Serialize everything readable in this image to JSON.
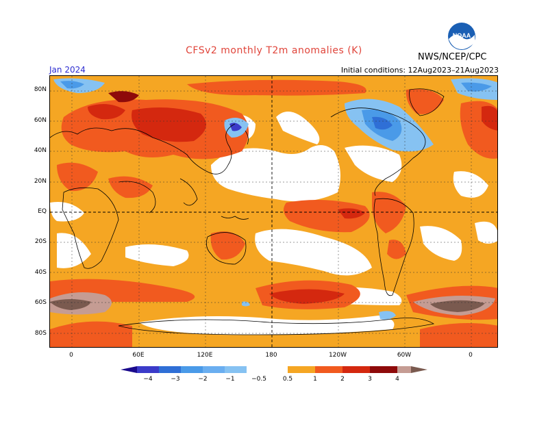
{
  "header": {
    "title": "CFSv2 monthly T2m anomalies (K)",
    "month": "Jan 2024",
    "initial_conditions": "Initial conditions: 12Aug2023–21Aug2023",
    "agency": "NWS/NCEP/CPC",
    "logo_text": "NOAA"
  },
  "map": {
    "lat_labels": [
      "80N",
      "60N",
      "40N",
      "20N",
      "EQ",
      "20S",
      "40S",
      "60S",
      "80S"
    ],
    "lon_labels": [
      "0",
      "60E",
      "120E",
      "180",
      "120W",
      "60W",
      "0"
    ]
  },
  "colorbar": {
    "labels": [
      "−4",
      "−3",
      "−2",
      "−1",
      "−0.5",
      "0.5",
      "1",
      "2",
      "3",
      "4"
    ],
    "colors": {
      "lt_-4": "#1a0a8c",
      "-4_-3": "#3b3bc9",
      "-3_-2": "#2f6fd6",
      "-2_-1": "#4a9ae8",
      "-1_-0.5": "#86c2f2",
      "-0.5_0.5": "#ffffff",
      "0.5_1": "#f5a623",
      "1_2": "#f15a1f",
      "2_3": "#d4280f",
      "3_4": "#8e0a0a",
      "4_5": "#c59c93",
      "gt_5": "#7a5a4f"
    }
  }
}
